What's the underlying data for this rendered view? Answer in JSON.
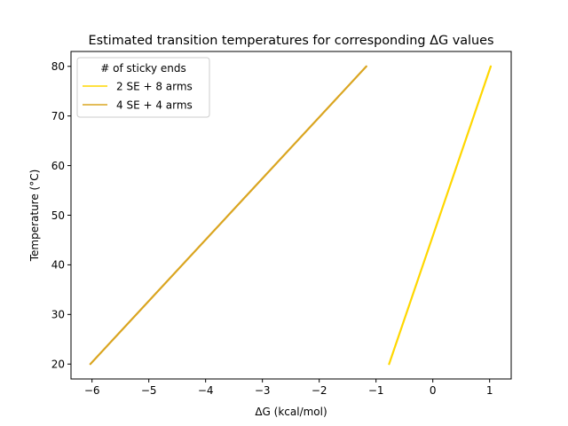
{
  "chart_data": {
    "type": "line",
    "title": "Estimated transition temperatures for corresponding ΔG values",
    "xlabel": "ΔG (kcal/mol)",
    "ylabel": "Temperature (°C)",
    "xlim": [
      -6.37,
      1.38
    ],
    "ylim": [
      17,
      83
    ],
    "xticks": [
      -6,
      -5,
      -4,
      -3,
      -2,
      -1,
      0,
      1
    ],
    "xtick_labels": [
      "−6",
      "−5",
      "−4",
      "−3",
      "−2",
      "−1",
      "0",
      "1"
    ],
    "yticks": [
      20,
      30,
      40,
      50,
      60,
      70,
      80
    ],
    "ytick_labels": [
      "20",
      "30",
      "40",
      "50",
      "60",
      "70",
      "80"
    ],
    "grid": false,
    "legend": {
      "title": "# of sticky ends",
      "placement": "top-left"
    },
    "series": [
      {
        "name": "2 SE + 8 arms",
        "color": "#ffd700",
        "x": [
          -0.77,
          1.02
        ],
        "y": [
          20,
          80
        ]
      },
      {
        "name": "4 SE + 4 arms",
        "color": "#daa520",
        "x": [
          -6.03,
          -1.17
        ],
        "y": [
          20,
          80
        ]
      }
    ]
  }
}
